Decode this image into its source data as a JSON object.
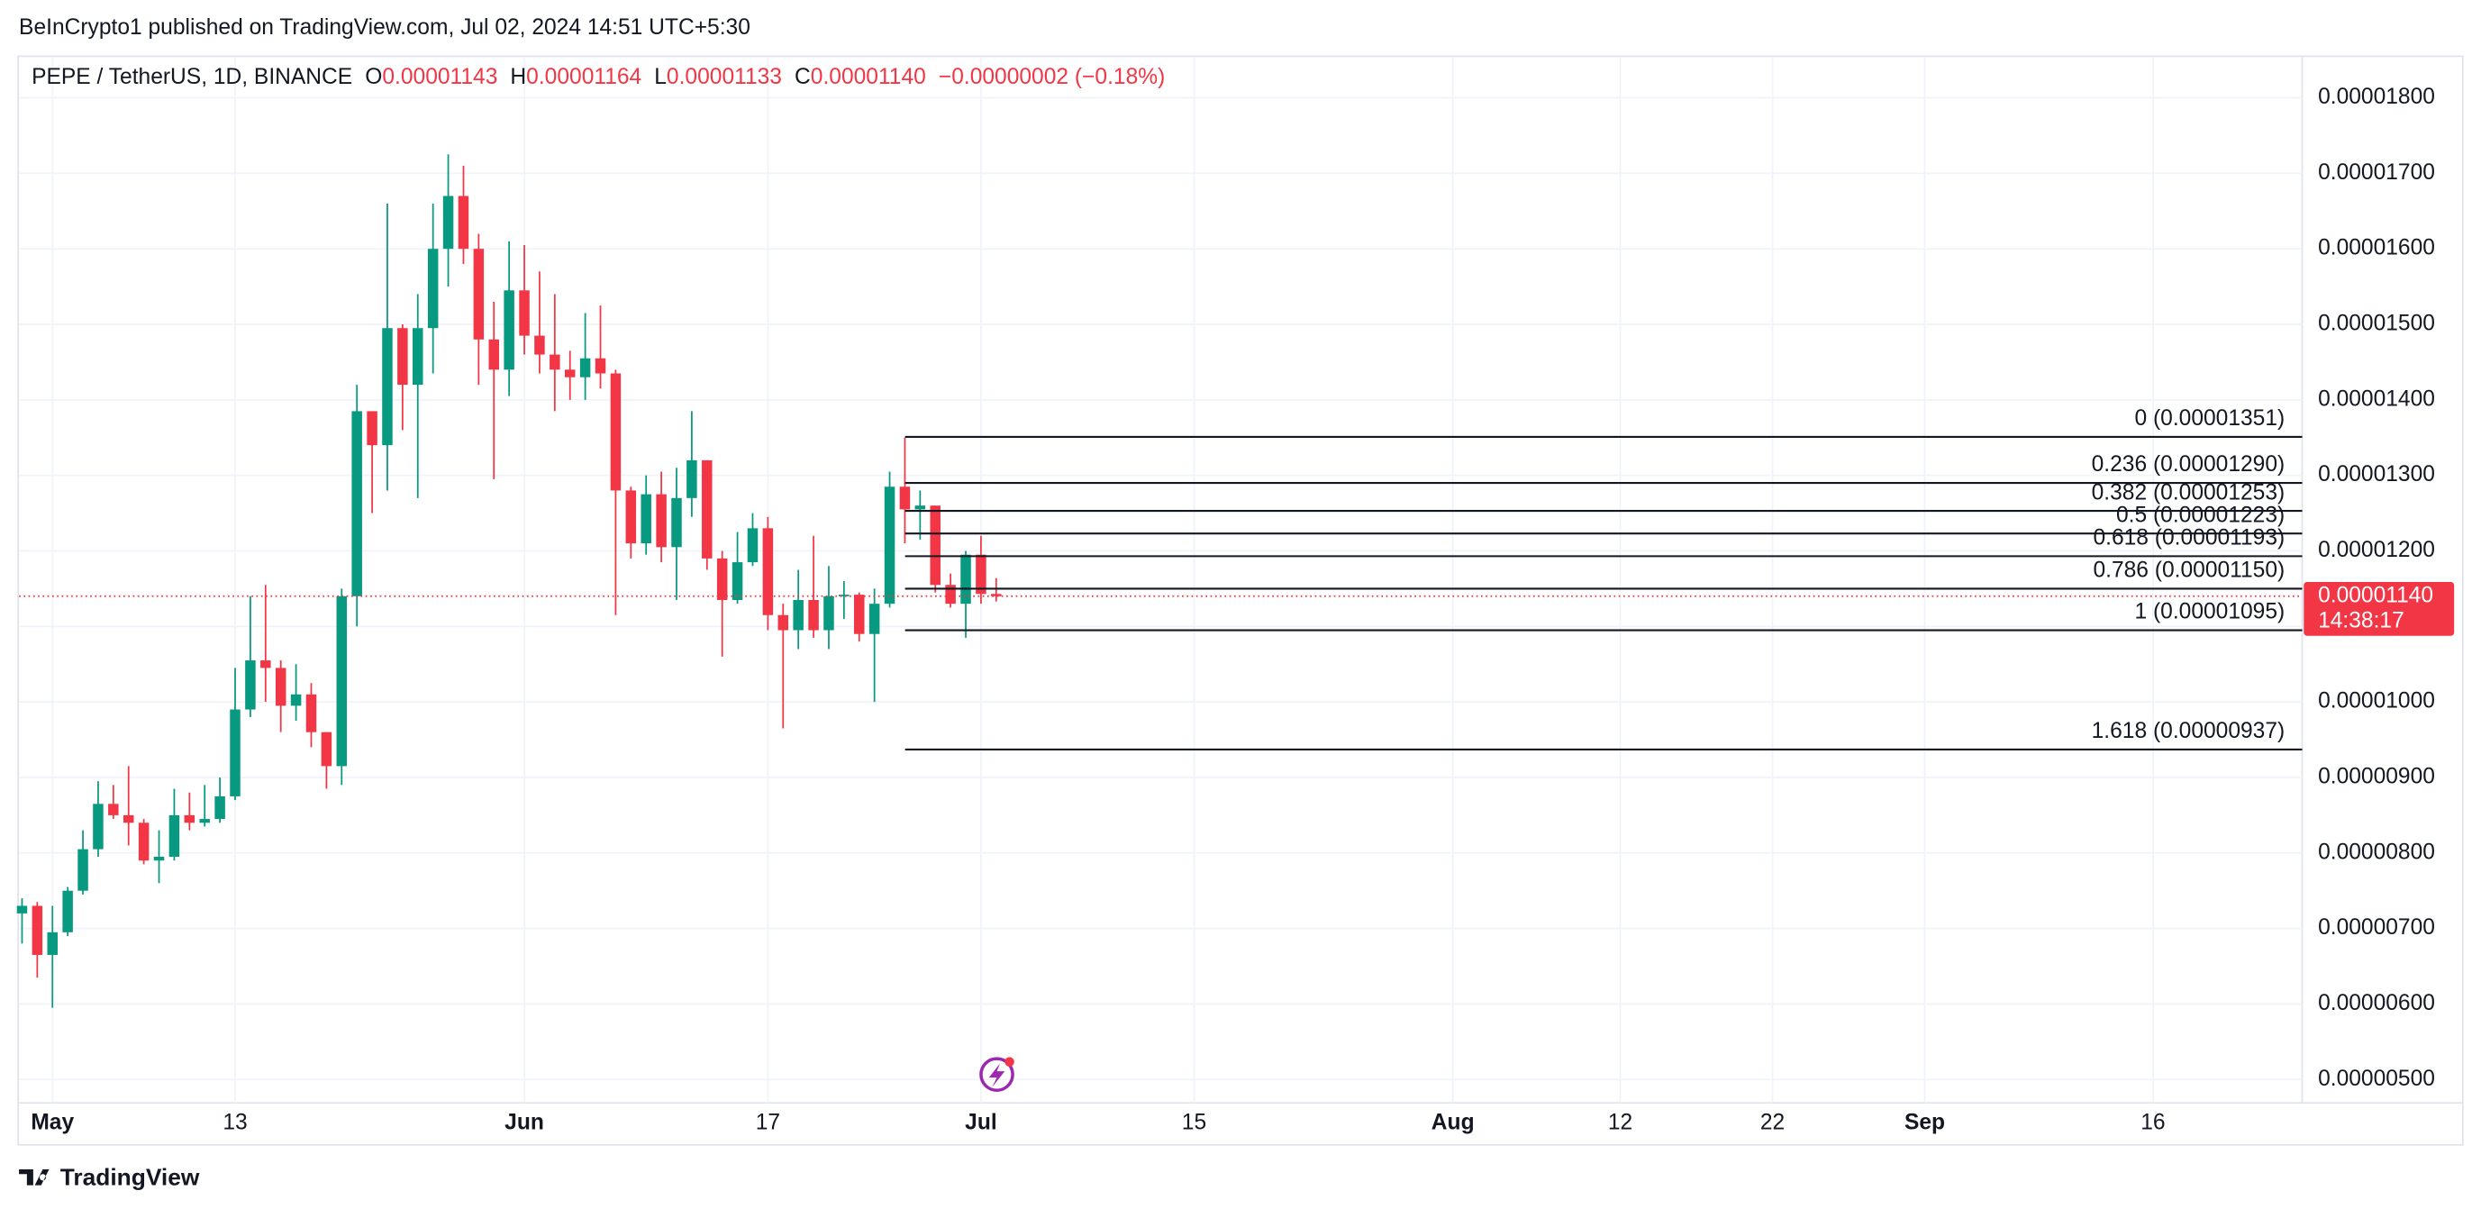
{
  "header": "BeInCrypto1 published on TradingView.com, Jul 02, 2024 14:51 UTC+5:30",
  "footer": "TradingView",
  "chart_data": {
    "type": "candlestick",
    "symbol": "PEPE / TetherUS, 1D, BINANCE",
    "legend_items": [
      {
        "key": "O",
        "value": "0.00001143"
      },
      {
        "key": "H",
        "value": "0.00001164"
      },
      {
        "key": "L",
        "value": "0.00001133"
      },
      {
        "key": "C",
        "value": "0.00001140"
      }
    ],
    "change": "−0.00000002 (−0.18%)",
    "up_color": "#089981",
    "down_color": "#f23645",
    "categories": [
      null,
      null,
      null,
      null,
      null,
      null,
      null,
      null,
      null,
      null,
      null,
      null,
      null,
      null,
      null,
      null,
      null,
      null,
      null,
      null,
      null,
      null,
      null,
      null,
      null,
      null,
      null,
      null,
      null,
      null,
      null,
      null,
      null,
      null,
      null,
      null,
      null,
      null,
      null,
      null,
      null,
      null,
      null,
      null,
      null,
      null,
      null,
      null,
      null,
      null,
      null,
      null,
      null,
      null,
      null,
      null,
      null,
      null,
      null,
      null,
      null,
      null,
      null,
      null,
      null
    ],
    "open": [
      7.2e-06,
      7.3e-06,
      6.65e-06,
      6.95e-06,
      7.5e-06,
      8.05e-06,
      8.65e-06,
      8.5e-06,
      8.4e-06,
      7.9e-06,
      7.95e-06,
      8.5e-06,
      8.4e-06,
      8.45e-06,
      8.75e-06,
      9.9e-06,
      1.055e-05,
      1.045e-05,
      9.95e-06,
      1.01e-05,
      9.6e-06,
      9.15e-06,
      1.14e-05,
      1.385e-05,
      1.34e-05,
      1.495e-05,
      1.42e-05,
      1.495e-05,
      1.6e-05,
      1.67e-05,
      1.6e-05,
      1.48e-05,
      1.44e-05,
      1.545e-05,
      1.485e-05,
      1.46e-05,
      1.44e-05,
      1.43e-05,
      1.455e-05,
      1.435e-05,
      1.28e-05,
      1.21e-05,
      1.275e-05,
      1.205e-05,
      1.27e-05,
      1.32e-05,
      1.19e-05,
      1.135e-05,
      1.185e-05,
      1.23e-05,
      1.115e-05,
      1.095e-05,
      1.135e-05,
      1.095e-05,
      1.14e-05,
      1.142e-05,
      1.09e-05,
      1.13e-05,
      1.285e-05,
      1.255e-05,
      1.26e-05,
      1.155e-05,
      1.13e-05,
      1.195e-05,
      1.143e-05
    ],
    "high": [
      7.4e-06,
      7.35e-06,
      7.3e-06,
      7.55e-06,
      8.3e-06,
      8.95e-06,
      8.9e-06,
      9.15e-06,
      8.45e-06,
      8.3e-06,
      8.85e-06,
      8.8e-06,
      8.9e-06,
      9e-06,
      1.045e-05,
      1.14e-05,
      1.155e-05,
      1.055e-05,
      1.05e-05,
      1.025e-05,
      9.6e-06,
      1.15e-05,
      1.42e-05,
      1.385e-05,
      1.66e-05,
      1.5e-05,
      1.54e-05,
      1.66e-05,
      1.725e-05,
      1.71e-05,
      1.62e-05,
      1.53e-05,
      1.61e-05,
      1.605e-05,
      1.57e-05,
      1.54e-05,
      1.465e-05,
      1.515e-05,
      1.525e-05,
      1.44e-05,
      1.285e-05,
      1.3e-05,
      1.305e-05,
      1.31e-05,
      1.385e-05,
      1.32e-05,
      1.2e-05,
      1.225e-05,
      1.25e-05,
      1.245e-05,
      1.13e-05,
      1.175e-05,
      1.22e-05,
      1.18e-05,
      1.16e-05,
      1.145e-05,
      1.15e-05,
      1.305e-05,
      1.35e-05,
      1.28e-05,
      1.26e-05,
      1.17e-05,
      1.2e-05,
      1.22e-05,
      1.164e-05
    ],
    "low": [
      6.8e-06,
      6.35e-06,
      5.95e-06,
      6.9e-06,
      7.45e-06,
      7.95e-06,
      8.45e-06,
      8.1e-06,
      7.85e-06,
      7.6e-06,
      7.9e-06,
      8.3e-06,
      8.35e-06,
      8.4e-06,
      8.7e-06,
      9.8e-06,
      1e-05,
      9.6e-06,
      9.75e-06,
      9.4e-06,
      8.85e-06,
      8.9e-06,
      1.1e-05,
      1.25e-05,
      1.28e-05,
      1.36e-05,
      1.27e-05,
      1.435e-05,
      1.55e-05,
      1.58e-05,
      1.42e-05,
      1.295e-05,
      1.405e-05,
      1.46e-05,
      1.435e-05,
      1.385e-05,
      1.4e-05,
      1.4e-05,
      1.415e-05,
      1.115e-05,
      1.19e-05,
      1.195e-05,
      1.185e-05,
      1.135e-05,
      1.245e-05,
      1.175e-05,
      1.06e-05,
      1.13e-05,
      1.18e-05,
      1.095e-05,
      9.65e-06,
      1.07e-05,
      1.085e-05,
      1.07e-05,
      1.11e-05,
      1.08e-05,
      1e-05,
      1.125e-05,
      1.21e-05,
      1.215e-05,
      1.145e-05,
      1.125e-05,
      1.085e-05,
      1.13e-05,
      1.133e-05
    ],
    "close": [
      7.3e-06,
      6.65e-06,
      6.95e-06,
      7.5e-06,
      8.05e-06,
      8.65e-06,
      8.5e-06,
      8.4e-06,
      7.9e-06,
      7.95e-06,
      8.5e-06,
      8.4e-06,
      8.45e-06,
      8.75e-06,
      9.9e-06,
      1.055e-05,
      1.045e-05,
      9.95e-06,
      1.01e-05,
      9.6e-06,
      9.15e-06,
      1.14e-05,
      1.385e-05,
      1.34e-05,
      1.495e-05,
      1.42e-05,
      1.495e-05,
      1.6e-05,
      1.67e-05,
      1.6e-05,
      1.48e-05,
      1.44e-05,
      1.545e-05,
      1.485e-05,
      1.46e-05,
      1.44e-05,
      1.43e-05,
      1.455e-05,
      1.435e-05,
      1.28e-05,
      1.21e-05,
      1.275e-05,
      1.205e-05,
      1.27e-05,
      1.32e-05,
      1.19e-05,
      1.135e-05,
      1.185e-05,
      1.23e-05,
      1.115e-05,
      1.095e-05,
      1.135e-05,
      1.095e-05,
      1.14e-05,
      1.142e-05,
      1.09e-05,
      1.13e-05,
      1.285e-05,
      1.255e-05,
      1.26e-05,
      1.155e-05,
      1.13e-05,
      1.195e-05,
      1.143e-05,
      1.14e-05
    ],
    "xlim": [
      -0.2,
      149.8
    ],
    "xticks": [
      {
        "value": 2,
        "label": "May"
      },
      {
        "value": 14,
        "label": "13"
      },
      {
        "value": 33,
        "label": "Jun"
      },
      {
        "value": 49,
        "label": "17"
      },
      {
        "value": 63,
        "label": "Jul"
      },
      {
        "value": 77,
        "label": "15"
      },
      {
        "value": 94,
        "label": "Aug"
      },
      {
        "value": 105,
        "label": "12"
      },
      {
        "value": 115,
        "label": "22"
      },
      {
        "value": 125,
        "label": "Sep"
      },
      {
        "value": 140,
        "label": "16"
      }
    ],
    "ylim": [
      4.69e-06,
      1.854e-05
    ],
    "yticks": [
      {
        "value": 1.8e-05,
        "label": "0.00001800"
      },
      {
        "value": 1.7e-05,
        "label": "0.00001700"
      },
      {
        "value": 1.6e-05,
        "label": "0.00001600"
      },
      {
        "value": 1.5e-05,
        "label": "0.00001500"
      },
      {
        "value": 1.4e-05,
        "label": "0.00001400"
      },
      {
        "value": 1.3e-05,
        "label": "0.00001300"
      },
      {
        "value": 1.2e-05,
        "label": "0.00001200"
      },
      {
        "value": 1.1e-05,
        "label": "0.00001100"
      },
      {
        "value": 1e-05,
        "label": "0.00001000"
      },
      {
        "value": 9e-06,
        "label": "0.00000900"
      },
      {
        "value": 8e-06,
        "label": "0.00000800"
      },
      {
        "value": 7e-06,
        "label": "0.00000700"
      },
      {
        "value": 6e-06,
        "label": "0.00000600"
      },
      {
        "value": 5e-06,
        "label": "0.00000500"
      }
    ],
    "grid": true,
    "fib_levels": [
      {
        "value": 1.351e-05,
        "label": "0 (0.00001351)"
      },
      {
        "value": 1.29e-05,
        "label": "0.236 (0.00001290)"
      },
      {
        "value": 1.253e-05,
        "label": "0.382 (0.00001253)"
      },
      {
        "value": 1.223e-05,
        "label": "0.5 (0.00001223)"
      },
      {
        "value": 1.193e-05,
        "label": "0.618 (0.00001193)"
      },
      {
        "value": 1.15e-05,
        "label": "0.786 (0.00001150)"
      },
      {
        "value": 1.095e-05,
        "label": "1 (0.00001095)"
      },
      {
        "value": 9.37e-06,
        "label": "1.618 (0.00000937)"
      }
    ],
    "last_price": {
      "value": 1.14e-05,
      "label": "0.00001140"
    },
    "countdown": "14:38:17"
  }
}
